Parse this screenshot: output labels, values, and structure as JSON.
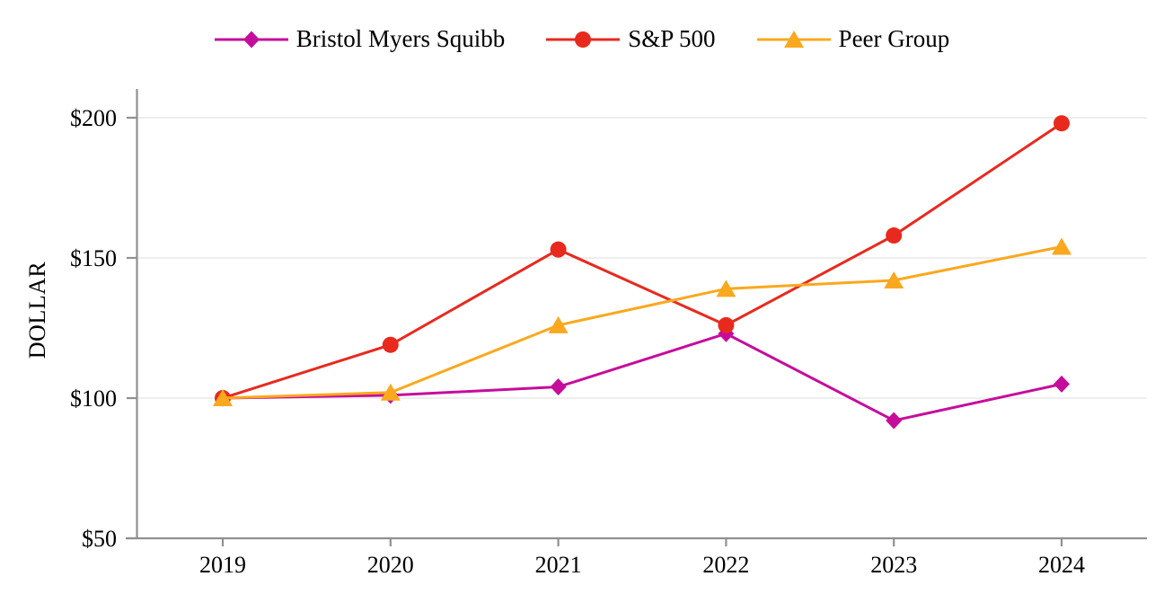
{
  "chart_data": {
    "type": "line",
    "title": "",
    "xlabel": "",
    "ylabel": "DOLLAR",
    "categories": [
      "2019",
      "2020",
      "2021",
      "2022",
      "2023",
      "2024"
    ],
    "series": [
      {
        "name": "Bristol Myers Squibb",
        "marker": "diamond",
        "color": "#C50D9C",
        "values": [
          100,
          101,
          104,
          123,
          92,
          105
        ]
      },
      {
        "name": "S&P 500",
        "marker": "circle",
        "color": "#E8291E",
        "values": [
          100,
          119,
          153,
          126,
          158,
          198
        ]
      },
      {
        "name": "Peer Group",
        "marker": "triangle",
        "color": "#FAA81E",
        "values": [
          100,
          102,
          126,
          139,
          142,
          154
        ]
      }
    ],
    "y_ticks": [
      {
        "value": 50,
        "label": "$50"
      },
      {
        "value": 100,
        "label": "$100"
      },
      {
        "value": 150,
        "label": "$150"
      },
      {
        "value": 200,
        "label": "$200"
      }
    ],
    "ylim": [
      50,
      210
    ],
    "legend_position": "top",
    "grid": "horizontal",
    "colors": {
      "axis": "#909090",
      "gridline": "#E8E8E8",
      "text": "#000000",
      "background": "#FFFFFF"
    }
  }
}
